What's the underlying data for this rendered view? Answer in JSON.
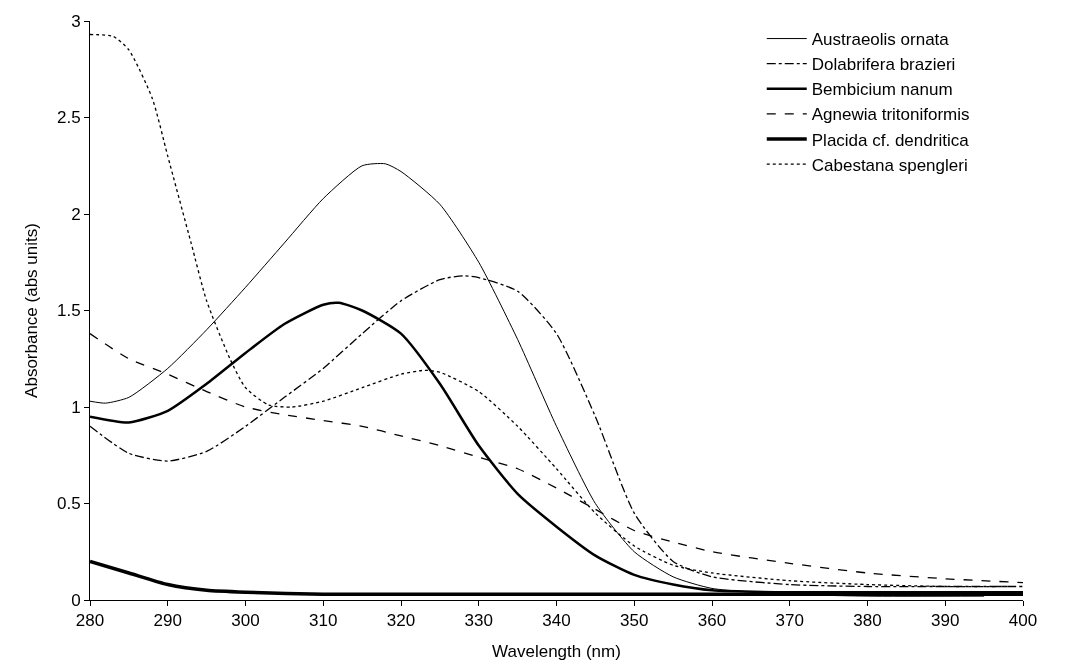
{
  "chart_data": {
    "type": "line",
    "xlabel": "Wavelength (nm)",
    "ylabel": "Absorbance (abs units)",
    "xlim": [
      280,
      400
    ],
    "xticks": [
      280,
      290,
      300,
      310,
      320,
      330,
      340,
      350,
      360,
      370,
      380,
      390,
      400
    ],
    "ylim": [
      0,
      3
    ],
    "yticks": [
      0,
      0.5,
      1,
      1.5,
      2,
      2.5,
      3
    ],
    "legend": "top right",
    "marker": "none",
    "series": [
      {
        "name": "Austraeolis ornata",
        "color": "#000000",
        "line_style": "solid",
        "x": [
          280,
          282,
          285,
          290,
          295,
          300,
          305,
          310,
          315,
          318,
          320,
          325,
          330,
          335,
          340,
          345,
          350,
          355,
          360,
          370,
          380,
          395
        ],
        "values": [
          1.03,
          1.02,
          1.05,
          1.2,
          1.4,
          1.62,
          1.85,
          2.08,
          2.25,
          2.26,
          2.22,
          2.05,
          1.75,
          1.35,
          0.9,
          0.5,
          0.25,
          0.12,
          0.06,
          0.03,
          0.02,
          0.02
        ]
      },
      {
        "name": "Dolabrifera brazieri",
        "color": "#000000",
        "line_style": "dashdot",
        "x": [
          280,
          285,
          290,
          295,
          300,
          305,
          310,
          315,
          320,
          325,
          328,
          330,
          335,
          340,
          345,
          350,
          355,
          360,
          370,
          380,
          390,
          400
        ],
        "values": [
          0.9,
          0.76,
          0.72,
          0.77,
          0.9,
          1.05,
          1.2,
          1.38,
          1.55,
          1.66,
          1.68,
          1.67,
          1.6,
          1.38,
          0.95,
          0.45,
          0.2,
          0.12,
          0.08,
          0.07,
          0.07,
          0.07
        ]
      },
      {
        "name": "Bembicium nanum",
        "color": "#000000",
        "line_style": "solid",
        "x": [
          280,
          285,
          290,
          295,
          300,
          305,
          310,
          312,
          315,
          320,
          325,
          330,
          335,
          340,
          345,
          350,
          355,
          360,
          370,
          380,
          400
        ],
        "values": [
          0.95,
          0.92,
          0.98,
          1.12,
          1.28,
          1.43,
          1.53,
          1.54,
          1.5,
          1.38,
          1.12,
          0.8,
          0.55,
          0.38,
          0.23,
          0.13,
          0.08,
          0.05,
          0.04,
          0.04,
          0.04
        ]
      },
      {
        "name": "Agnewia tritoniformis",
        "color": "#000000",
        "line_style": "dashed",
        "x": [
          280,
          285,
          290,
          295,
          300,
          305,
          310,
          315,
          320,
          325,
          330,
          335,
          340,
          345,
          350,
          355,
          360,
          370,
          380,
          390,
          400
        ],
        "values": [
          1.38,
          1.25,
          1.17,
          1.08,
          1.0,
          0.96,
          0.93,
          0.9,
          0.85,
          0.8,
          0.74,
          0.68,
          0.58,
          0.47,
          0.36,
          0.3,
          0.25,
          0.19,
          0.14,
          0.11,
          0.09
        ]
      },
      {
        "name": "Placida cf. dendritica",
        "color": "#000000",
        "line_style": "solid",
        "x": [
          280,
          285,
          290,
          295,
          300,
          310,
          330,
          360,
          400
        ],
        "values": [
          0.2,
          0.14,
          0.08,
          0.05,
          0.04,
          0.03,
          0.03,
          0.03,
          0.03
        ]
      },
      {
        "name": "Cabestana spengleri",
        "color": "#000000",
        "line_style": "dotted",
        "x": [
          280,
          283,
          285,
          288,
          290,
          293,
          295,
          298,
          300,
          303,
          306,
          310,
          315,
          320,
          323,
          325,
          330,
          335,
          340,
          345,
          350,
          355,
          360,
          370,
          380,
          390,
          398
        ],
        "values": [
          2.93,
          2.92,
          2.85,
          2.6,
          2.3,
          1.85,
          1.55,
          1.25,
          1.1,
          1.01,
          1.0,
          1.03,
          1.1,
          1.17,
          1.19,
          1.18,
          1.08,
          0.9,
          0.68,
          0.45,
          0.28,
          0.18,
          0.14,
          0.1,
          0.08,
          0.07,
          0.07
        ]
      }
    ]
  }
}
